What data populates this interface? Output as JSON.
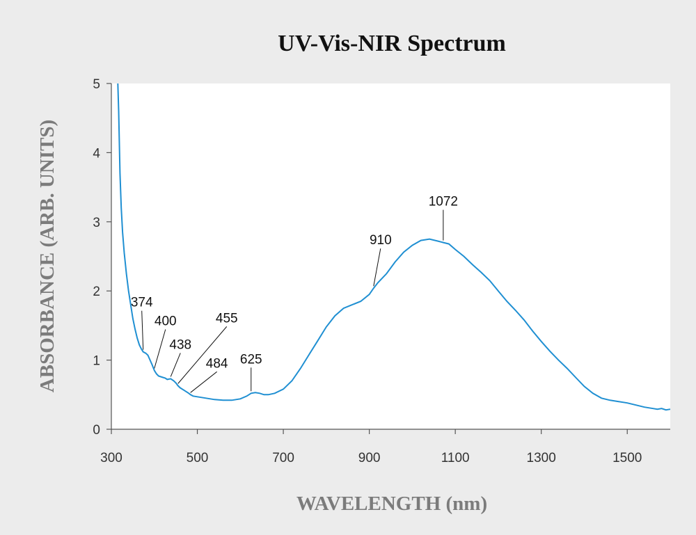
{
  "chart_data": {
    "type": "line",
    "title": "UV-Vis-NIR Spectrum",
    "xlabel": "WAVELENGTH (nm)",
    "ylabel": "ABSORBANCE (ARB. UNITS)",
    "xlim": [
      300,
      1600
    ],
    "ylim": [
      0,
      5
    ],
    "xticks": [
      300,
      500,
      700,
      900,
      1100,
      1300,
      1500
    ],
    "yticks": [
      0,
      1,
      2,
      3,
      4,
      5
    ],
    "grid": false,
    "line_color": "#1f8fd2",
    "series": [
      {
        "x": [
          315,
          317,
          320,
          323,
          326,
          330,
          335,
          340,
          345,
          350,
          355,
          360,
          365,
          370,
          374,
          380,
          385,
          390,
          395,
          400,
          405,
          410,
          415,
          420,
          425,
          430,
          438,
          445,
          450,
          455,
          460,
          470,
          480,
          484,
          490,
          500,
          520,
          540,
          560,
          580,
          600,
          615,
          625,
          635,
          645,
          655,
          665,
          680,
          700,
          720,
          740,
          760,
          780,
          800,
          820,
          840,
          860,
          880,
          900,
          910,
          920,
          940,
          960,
          980,
          1000,
          1020,
          1040,
          1060,
          1072,
          1085,
          1100,
          1120,
          1140,
          1160,
          1180,
          1200,
          1220,
          1240,
          1260,
          1280,
          1300,
          1320,
          1340,
          1360,
          1380,
          1400,
          1420,
          1440,
          1460,
          1480,
          1500,
          1520,
          1540,
          1560,
          1570,
          1580,
          1590,
          1600
        ],
        "y": [
          5.0,
          4.6,
          3.7,
          3.2,
          2.85,
          2.55,
          2.25,
          2.0,
          1.8,
          1.6,
          1.45,
          1.32,
          1.22,
          1.16,
          1.12,
          1.1,
          1.07,
          1.0,
          0.93,
          0.85,
          0.8,
          0.77,
          0.76,
          0.75,
          0.74,
          0.72,
          0.73,
          0.7,
          0.67,
          0.63,
          0.6,
          0.56,
          0.52,
          0.5,
          0.48,
          0.47,
          0.45,
          0.43,
          0.42,
          0.42,
          0.44,
          0.48,
          0.52,
          0.53,
          0.52,
          0.5,
          0.5,
          0.52,
          0.58,
          0.7,
          0.88,
          1.08,
          1.28,
          1.48,
          1.64,
          1.75,
          1.8,
          1.85,
          1.95,
          2.04,
          2.12,
          2.25,
          2.42,
          2.56,
          2.66,
          2.73,
          2.75,
          2.72,
          2.7,
          2.68,
          2.6,
          2.5,
          2.38,
          2.27,
          2.15,
          2.0,
          1.85,
          1.72,
          1.58,
          1.42,
          1.27,
          1.13,
          1.0,
          0.88,
          0.75,
          0.62,
          0.52,
          0.45,
          0.42,
          0.4,
          0.38,
          0.35,
          0.32,
          0.3,
          0.29,
          0.3,
          0.28,
          0.29
        ]
      }
    ],
    "annotations": [
      {
        "label": "374",
        "x": 374,
        "y": 1.12
      },
      {
        "label": "400",
        "x": 400,
        "y": 0.85
      },
      {
        "label": "438",
        "x": 438,
        "y": 0.73
      },
      {
        "label": "455",
        "x": 455,
        "y": 0.63
      },
      {
        "label": "484",
        "x": 484,
        "y": 0.5
      },
      {
        "label": "625",
        "x": 625,
        "y": 0.52
      },
      {
        "label": "910",
        "x": 910,
        "y": 2.04
      },
      {
        "label": "1072",
        "x": 1072,
        "y": 2.7
      }
    ]
  }
}
